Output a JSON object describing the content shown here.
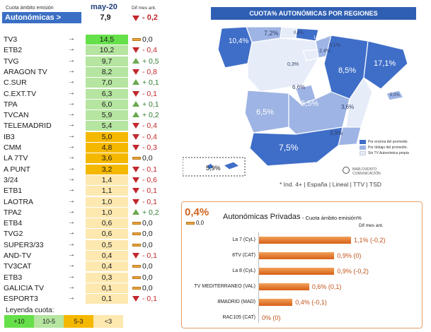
{
  "header": {
    "scope_label": "Cuota ámbito emisión",
    "month": "may-20",
    "diff_label": "Dif mes ant."
  },
  "autonomicas": {
    "name": "Autonómicas >",
    "value": "7,9",
    "diff": "- 0,2",
    "trend": "down"
  },
  "rows": [
    {
      "name": "TV3",
      "value": "14,5",
      "diff": "0,0",
      "trend": "eq",
      "band": "green"
    },
    {
      "name": "ETB2",
      "value": "10,2",
      "diff": "- 0,4",
      "trend": "down",
      "band": "lightgreen"
    },
    {
      "name": "TVG",
      "value": "9,7",
      "diff": "+ 0,5",
      "trend": "up",
      "band": "lightgreen"
    },
    {
      "name": "ARAGON TV",
      "value": "8,2",
      "diff": "- 0,8",
      "trend": "down",
      "band": "lightgreen"
    },
    {
      "name": "C.SUR",
      "value": "7,0",
      "diff": "+ 0,1",
      "trend": "up",
      "band": "lightgreen"
    },
    {
      "name": "C.EXT.TV",
      "value": "6,3",
      "diff": "- 0,1",
      "trend": "down",
      "band": "lightgreen"
    },
    {
      "name": "TPA",
      "value": "6,0",
      "diff": "+ 0,1",
      "trend": "up",
      "band": "lightgreen"
    },
    {
      "name": "TVCAN",
      "value": "5,9",
      "diff": "+ 0,2",
      "trend": "up",
      "band": "lightgreen"
    },
    {
      "name": "TELEMADRID",
      "value": "5,4",
      "diff": "- 0,4",
      "trend": "down",
      "band": "lightgreen"
    },
    {
      "name": "IB3",
      "value": "5,0",
      "diff": "- 0,4",
      "trend": "down",
      "band": "orange"
    },
    {
      "name": "CMM",
      "value": "4,8",
      "diff": "- 0,3",
      "trend": "down",
      "band": "orange"
    },
    {
      "name": "LA 7TV",
      "value": "3,6",
      "diff": "0,0",
      "trend": "eq",
      "band": "orange"
    },
    {
      "name": "A PUNT",
      "value": "3,2",
      "diff": "- 0,1",
      "trend": "down",
      "band": "orange"
    },
    {
      "name": "3/24",
      "value": "1,4",
      "diff": "- 0,6",
      "trend": "down",
      "band": "cream"
    },
    {
      "name": "ETB1",
      "value": "1,1",
      "diff": "- 0,1",
      "trend": "down",
      "band": "cream"
    },
    {
      "name": "LAOTRA",
      "value": "1,0",
      "diff": "- 0,1",
      "trend": "down",
      "band": "cream"
    },
    {
      "name": "TPA2",
      "value": "1,0",
      "diff": "+ 0,2",
      "trend": "up",
      "band": "cream"
    },
    {
      "name": "ETB4",
      "value": "0,6",
      "diff": "0,0",
      "trend": "eq",
      "band": "cream"
    },
    {
      "name": "TVG2",
      "value": "0,6",
      "diff": "0,0",
      "trend": "eq",
      "band": "cream"
    },
    {
      "name": "SUPER3/33",
      "value": "0,5",
      "diff": "0,0",
      "trend": "eq",
      "band": "cream"
    },
    {
      "name": "AND-TV",
      "value": "0,4",
      "diff": "- 0,1",
      "trend": "down",
      "band": "cream"
    },
    {
      "name": "TV3CAT",
      "value": "0,4",
      "diff": "0,0",
      "trend": "eq",
      "band": "cream"
    },
    {
      "name": "ETB3",
      "value": "0,3",
      "diff": "0,0",
      "trend": "eq",
      "band": "cream"
    },
    {
      "name": "GALICIA TV",
      "value": "0,1",
      "diff": "0,0",
      "trend": "eq",
      "band": "cream"
    },
    {
      "name": "ESPORT3",
      "value": "0,1",
      "diff": "- 0,1",
      "trend": "down",
      "band": "cream"
    }
  ],
  "legend": {
    "title": "Leyenda cuota:",
    "items": [
      "+10",
      "10-5",
      "5-3",
      "<3"
    ]
  },
  "band_colors": {
    "green": "#66e04a",
    "lightgreen": "#b5e5a0",
    "orange": "#f5b800",
    "cream": "#fde8b0",
    "auto": "#3a6fc4"
  },
  "map": {
    "title": "CUOTA% AUTONÓMICAS POR REGIONES",
    "labels": [
      "10,4%",
      "7,2%",
      "0,6%",
      "13,5%",
      "8,1%",
      "2,4%",
      "0,3%",
      "8,5%",
      "17,1%",
      "6,6%",
      "6,5%",
      "5,5%",
      "3,6%",
      "5,0%",
      "3,9%",
      "7,5%",
      "5,9%"
    ],
    "legend": [
      "Por encima del promedio.",
      "Por debajo del promedio.",
      "Sin TV Autonómica propia"
    ],
    "legend_colors": [
      "#3f6ec8",
      "#9eb4e4",
      "#e6ecf8"
    ],
    "brand": "BARLOVENTO COMUNICACIÓN",
    "footnote": "* Ind. 4+ | España | Lineal | TTV | TSD"
  },
  "private": {
    "total": "0,4%",
    "total_diff": "0,0",
    "title": "Autonómicas Privadas",
    "subtitle": "- Cuota ámbito emisión%",
    "diff_label": "Dif mes ant.",
    "items": [
      {
        "name": "La 7 (CyL)",
        "value": 1.1,
        "label": "1,1% (-0,2)"
      },
      {
        "name": "8TV (CAT)",
        "value": 0.9,
        "label": "0,9% (0)"
      },
      {
        "name": "La 8 (CyL)",
        "value": 0.9,
        "label": "0,9% (-0,2)"
      },
      {
        "name": "TV MEDITERRANEO (VAL)",
        "value": 0.6,
        "label": "0,6% (0,1)"
      },
      {
        "name": "8MADRID (MAD)",
        "value": 0.4,
        "label": "0,4% (-0,1)"
      },
      {
        "name": "RAC105 (CAT)",
        "value": 0.0,
        "label": "0% (0)"
      }
    ]
  }
}
